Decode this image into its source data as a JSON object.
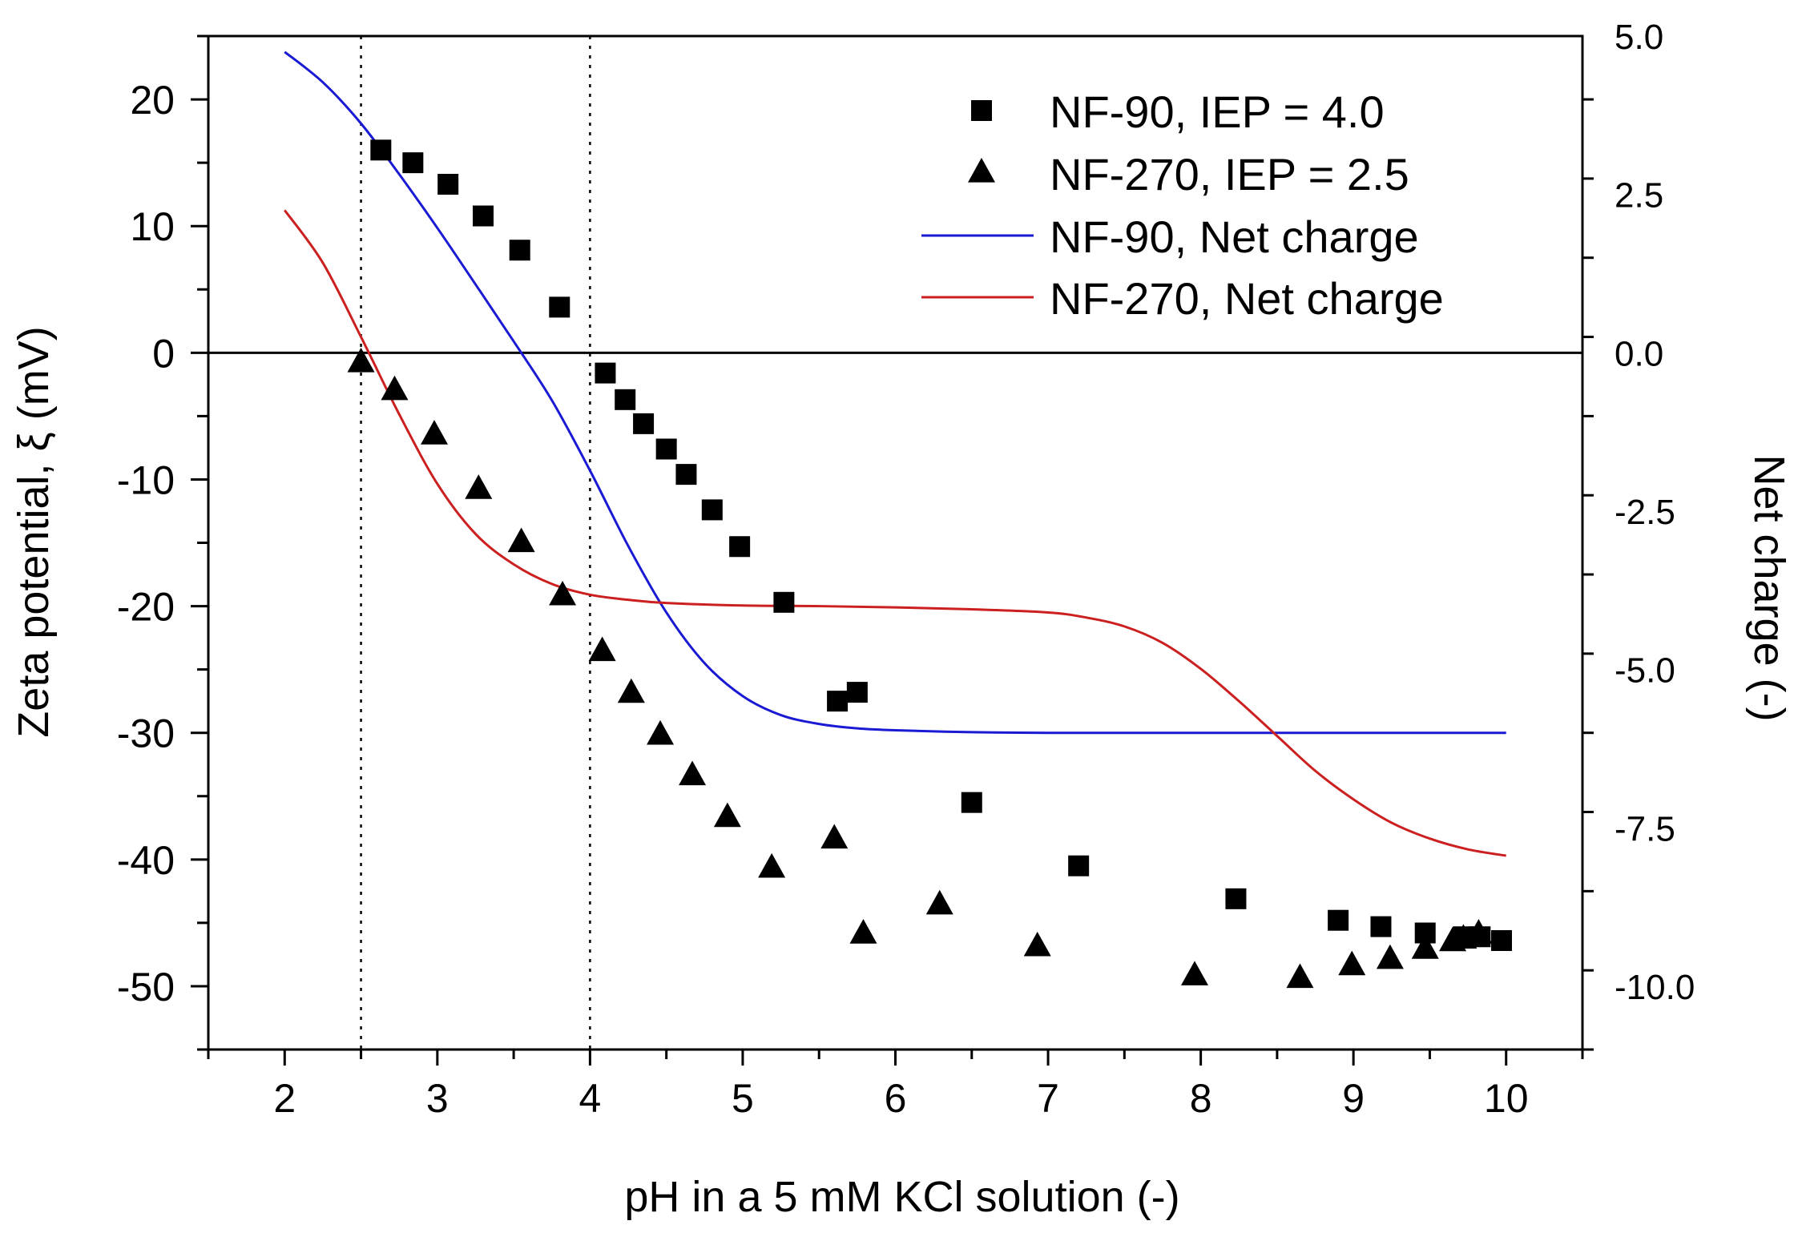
{
  "chart_data": {
    "type": "scatter",
    "title": "",
    "xlabel": "pH in a 5 mM KCl solution (-)",
    "ylabel": "Zeta potential, ξ (mV)",
    "y2label": "Net charge (-)",
    "xlim": [
      1.5,
      10.5
    ],
    "ylim": [
      -55,
      25
    ],
    "y2lim": [
      -11,
      5
    ],
    "xticks": [
      2,
      3,
      4,
      5,
      6,
      7,
      8,
      9,
      10
    ],
    "yticks": [
      20,
      10,
      0,
      -10,
      -20,
      -30,
      -40,
      -50
    ],
    "y2ticks": [
      "5.0",
      "2.5",
      "0.0",
      "-2.5",
      "-5.0",
      "-7.5",
      "-10.0"
    ],
    "y2tick_values": [
      5,
      2.5,
      0,
      -2.5,
      -5,
      -7.5,
      -10
    ],
    "reference_lines": {
      "vertical_dotted_x": [
        2.5,
        4.0
      ],
      "horizontal_y": 0
    },
    "series": [
      {
        "name": "NF-90, IEP = 4.0",
        "kind": "scatter",
        "marker": "square",
        "axis": "left",
        "x": [
          2.63,
          2.84,
          3.07,
          3.3,
          3.54,
          3.8,
          4.1,
          4.23,
          4.35,
          4.5,
          4.63,
          4.8,
          4.98,
          5.27,
          5.62,
          5.75,
          6.5,
          7.2,
          8.23,
          8.9,
          9.18,
          9.47,
          9.72,
          9.83,
          9.97
        ],
        "y": [
          16,
          15,
          13.3,
          10.8,
          8.1,
          3.6,
          -1.6,
          -3.7,
          -5.6,
          -7.6,
          -9.6,
          -12.4,
          -15.3,
          -19.7,
          -27.5,
          -26.8,
          -35.5,
          -40.5,
          -43.1,
          -44.8,
          -45.3,
          -45.8,
          -46.1,
          -46.1,
          -46.4
        ]
      },
      {
        "name": "NF-270, IEP = 2.5",
        "kind": "scatter",
        "marker": "triangle",
        "axis": "left",
        "x": [
          2.5,
          2.72,
          2.98,
          3.27,
          3.55,
          3.82,
          4.08,
          4.27,
          4.46,
          4.67,
          4.9,
          5.19,
          5.6,
          5.79,
          6.29,
          6.93,
          7.96,
          8.65,
          8.99,
          9.24,
          9.47,
          9.65,
          9.72,
          9.82
        ],
        "y": [
          -0.8,
          -3,
          -6.5,
          -10.8,
          -15,
          -19.2,
          -23.6,
          -26.9,
          -30.2,
          -33.4,
          -36.7,
          -40.7,
          -38.4,
          -45.9,
          -43.6,
          -46.9,
          -49.2,
          -49.4,
          -48.4,
          -47.9,
          -47.1,
          -46.5,
          -46.3,
          -45.9
        ]
      },
      {
        "name": "NF-90, Net charge",
        "kind": "line",
        "color": "#1a1ad4",
        "axis": "right",
        "x": [
          2.0,
          2.25,
          2.5,
          2.75,
          3.0,
          3.25,
          3.5,
          3.75,
          4.0,
          4.25,
          4.5,
          4.75,
          5.0,
          5.25,
          5.5,
          5.75,
          6.0,
          6.5,
          7.0,
          8.0,
          9.0,
          10.0
        ],
        "y": [
          4.75,
          4.27,
          3.62,
          2.82,
          1.97,
          1.08,
          0.18,
          -0.75,
          -1.86,
          -3.05,
          -4.1,
          -4.9,
          -5.42,
          -5.72,
          -5.86,
          -5.93,
          -5.96,
          -5.99,
          -6.0,
          -6.0,
          -6.0,
          -6.0
        ]
      },
      {
        "name": "NF-270, Net charge",
        "kind": "line",
        "color": "#cc1f1f",
        "axis": "right",
        "x": [
          2.0,
          2.25,
          2.5,
          2.75,
          3.0,
          3.25,
          3.5,
          3.75,
          4.0,
          4.25,
          4.5,
          5.0,
          5.5,
          6.0,
          6.5,
          7.0,
          7.25,
          7.5,
          7.75,
          8.0,
          8.25,
          8.5,
          8.75,
          9.0,
          9.25,
          9.5,
          9.75,
          10.0
        ],
        "y": [
          2.25,
          1.42,
          0.25,
          -0.97,
          -2.07,
          -2.86,
          -3.34,
          -3.65,
          -3.82,
          -3.9,
          -3.95,
          -3.99,
          -4.0,
          -4.02,
          -4.05,
          -4.1,
          -4.18,
          -4.32,
          -4.58,
          -4.99,
          -5.5,
          -6.05,
          -6.6,
          -7.05,
          -7.42,
          -7.67,
          -7.84,
          -7.94
        ]
      }
    ],
    "legend": {
      "position": "top-right",
      "entries": [
        {
          "label": "NF-90, IEP = 4.0",
          "symbol": "square"
        },
        {
          "label": "NF-270, IEP = 2.5",
          "symbol": "triangle"
        },
        {
          "label": "NF-90, Net charge",
          "symbol": "line",
          "color": "#1a1ad4"
        },
        {
          "label": "NF-270, Net charge",
          "symbol": "line",
          "color": "#cc1f1f"
        }
      ]
    }
  }
}
